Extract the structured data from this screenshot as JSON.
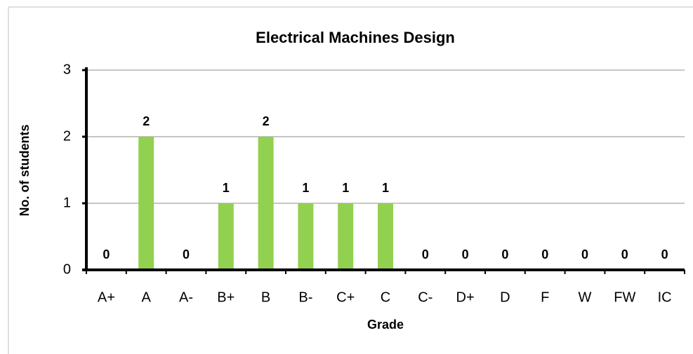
{
  "chart_data": {
    "type": "bar",
    "title": "Electrical Machines Design",
    "x_label": "Grade",
    "y_label": "No. of students",
    "categories": [
      "A+",
      "A",
      "A-",
      "B+",
      "B",
      "B-",
      "C+",
      "C",
      "C-",
      "D+",
      "D",
      "F",
      "W",
      "FW",
      "IC"
    ],
    "values": [
      0,
      2,
      0,
      1,
      2,
      1,
      1,
      1,
      0,
      0,
      0,
      0,
      0,
      0,
      0
    ],
    "color": "#92d050",
    "ylim": [
      0,
      3
    ],
    "yticks": [
      0,
      1,
      2,
      3
    ],
    "grid": true
  }
}
